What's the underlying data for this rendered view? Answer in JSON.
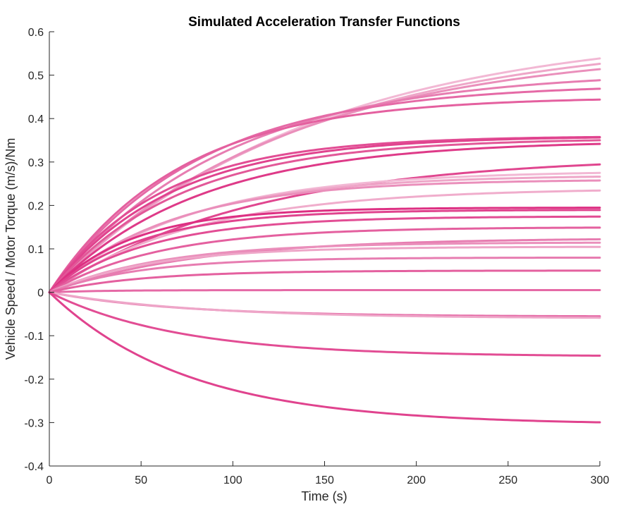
{
  "chart_data": {
    "type": "line",
    "title": "Simulated Acceleration Transfer Functions",
    "xlabel": "Time (s)",
    "ylabel": "Vehicle Speed / Motor Torque (m/s)/Nm",
    "xlim": [
      0,
      300
    ],
    "ylim": [
      -0.4,
      0.6
    ],
    "xticks": [
      "0",
      "50",
      "100",
      "150",
      "200",
      "250",
      "300"
    ],
    "yticks": [
      "-0.4",
      "-0.3",
      "-0.2",
      "-0.1",
      "0",
      "0.1",
      "0.2",
      "0.3",
      "0.4",
      "0.5",
      "0.6"
    ],
    "grid": false,
    "legend": "none",
    "model": "first-order step response y = K(1 - exp(-t/tau))",
    "series": [
      {
        "gain": 0.61,
        "tau": 140,
        "color": "#f2b8d4"
      },
      {
        "gain": 0.59,
        "tau": 135,
        "color": "#eea6c8"
      },
      {
        "gain": 0.565,
        "tau": 125,
        "color": "#ea8fbb"
      },
      {
        "gain": 0.51,
        "tau": 95,
        "color": "#e77db1"
      },
      {
        "gain": 0.48,
        "tau": 80,
        "color": "#e56aa6"
      },
      {
        "gain": 0.45,
        "tau": 70,
        "color": "#e4609f"
      },
      {
        "gain": 0.36,
        "tau": 60,
        "color": "#e24d94"
      },
      {
        "gain": 0.36,
        "tau": 65,
        "color": "#e0438e"
      },
      {
        "gain": 0.355,
        "tau": 70,
        "color": "#e25898"
      },
      {
        "gain": 0.35,
        "tau": 80,
        "color": "#de3a88"
      },
      {
        "gain": 0.315,
        "tau": 110,
        "color": "#e0468f"
      },
      {
        "gain": 0.28,
        "tau": 75,
        "color": "#f2b8d4"
      },
      {
        "gain": 0.27,
        "tau": 70,
        "color": "#eea6c8"
      },
      {
        "gain": 0.26,
        "tau": 65,
        "color": "#ea8fbb"
      },
      {
        "gain": 0.24,
        "tau": 80,
        "color": "#f0adcc"
      },
      {
        "gain": 0.195,
        "tau": 45,
        "color": "#dd2f82"
      },
      {
        "gain": 0.19,
        "tau": 50,
        "color": "#e0438e"
      },
      {
        "gain": 0.175,
        "tau": 55,
        "color": "#e24d94"
      },
      {
        "gain": 0.15,
        "tau": 60,
        "color": "#e4609f"
      },
      {
        "gain": 0.125,
        "tau": 80,
        "color": "#e77db1"
      },
      {
        "gain": 0.115,
        "tau": 60,
        "color": "#ea8fbb"
      },
      {
        "gain": 0.105,
        "tau": 55,
        "color": "#eea6c8"
      },
      {
        "gain": 0.08,
        "tau": 50,
        "color": "#e77db1"
      },
      {
        "gain": 0.05,
        "tau": 50,
        "color": "#e4609f"
      },
      {
        "gain": 0.005,
        "tau": 30,
        "color": "#e56aa6"
      },
      {
        "gain": -0.056,
        "tau": 70,
        "color": "#e56aa6"
      },
      {
        "gain": -0.06,
        "tau": 80,
        "color": "#eea6c8"
      },
      {
        "gain": -0.148,
        "tau": 70,
        "color": "#e24d94"
      },
      {
        "gain": -0.305,
        "tau": 75,
        "color": "#e0438e"
      }
    ]
  }
}
